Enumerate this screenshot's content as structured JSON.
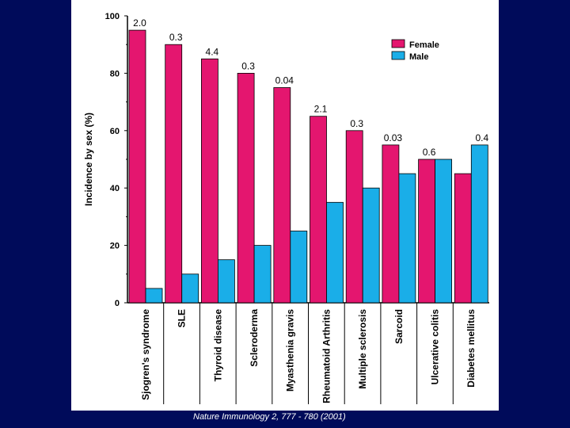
{
  "chart_data": {
    "type": "bar",
    "title": "",
    "xlabel": "",
    "ylabel": "Incidence by sex (%)",
    "ylim": [
      0,
      100
    ],
    "yticks": [
      "0",
      "20",
      "40",
      "60",
      "80",
      "100"
    ],
    "legend_position": "top-right",
    "categories": [
      "Sjogren's syndrome",
      "SLE",
      "Thyroid disease",
      "Scleroderma",
      "Myasthenia gravis",
      "Rheumatoid Arthritis",
      "Multiple sclerosis",
      "Sarcoid",
      "Ulcerative colitis",
      "Diabetes mellitus"
    ],
    "series": [
      {
        "name": "Female",
        "color": "#e4166f",
        "values": [
          95,
          90,
          85,
          80,
          75,
          65,
          60,
          55,
          50,
          45
        ]
      },
      {
        "name": "Male",
        "color": "#1aaee8",
        "values": [
          5,
          10,
          15,
          20,
          25,
          35,
          40,
          45,
          50,
          55
        ]
      }
    ],
    "annotations": [
      "2.0",
      "0.3",
      "4.4",
      "0.3",
      "0.04",
      "2.1",
      "0.3",
      "0.03",
      "0.6",
      "0.4"
    ],
    "annotation_value": [
      95,
      90,
      85,
      80,
      75,
      65,
      60,
      55,
      50,
      55
    ],
    "annotation_series": [
      0,
      0,
      0,
      0,
      0,
      0,
      0,
      0,
      0,
      1
    ]
  },
  "citation": {
    "journal": "Nature Immunology",
    "ref": "2, 777 - 780 (2001)"
  }
}
